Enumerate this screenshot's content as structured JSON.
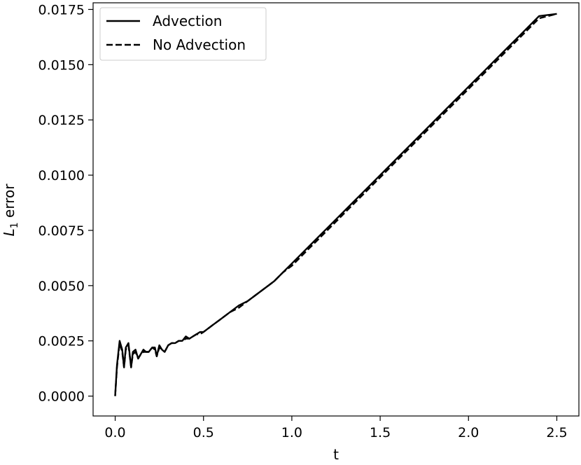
{
  "chart_data": {
    "type": "line",
    "xlabel": "t",
    "ylabel": "L",
    "ylabel_sub": "1",
    "ylabel_suffix": " error",
    "xlim": [
      -0.125,
      2.625
    ],
    "ylim": [
      -0.0009,
      0.0178
    ],
    "xticks": [
      0.0,
      0.5,
      1.0,
      1.5,
      2.0,
      2.5
    ],
    "xtick_labels": [
      "0.0",
      "0.5",
      "1.0",
      "1.5",
      "2.0",
      "2.5"
    ],
    "yticks": [
      0.0,
      0.0025,
      0.005,
      0.0075,
      0.01,
      0.0125,
      0.015,
      0.0175
    ],
    "ytick_labels": [
      "0.0000",
      "0.0025",
      "0.0050",
      "0.0075",
      "0.0100",
      "0.0125",
      "0.0150",
      "0.0175"
    ],
    "grid": false,
    "legend_position": "top-left",
    "series": [
      {
        "name": "Advection",
        "style": "solid",
        "color": "#000000",
        "points": [
          [
            0.0,
            0.0
          ],
          [
            0.01,
            0.0014
          ],
          [
            0.025,
            0.0025
          ],
          [
            0.04,
            0.0021
          ],
          [
            0.05,
            0.0013
          ],
          [
            0.06,
            0.0022
          ],
          [
            0.075,
            0.0024
          ],
          [
            0.09,
            0.0013
          ],
          [
            0.1,
            0.002
          ],
          [
            0.115,
            0.0021
          ],
          [
            0.13,
            0.0017
          ],
          [
            0.145,
            0.0019
          ],
          [
            0.16,
            0.0021
          ],
          [
            0.175,
            0.002
          ],
          [
            0.19,
            0.002
          ],
          [
            0.2,
            0.0021
          ],
          [
            0.21,
            0.0022
          ],
          [
            0.225,
            0.0022
          ],
          [
            0.235,
            0.0018
          ],
          [
            0.25,
            0.0023
          ],
          [
            0.265,
            0.0021
          ],
          [
            0.28,
            0.002
          ],
          [
            0.3,
            0.0023
          ],
          [
            0.32,
            0.0024
          ],
          [
            0.34,
            0.0024
          ],
          [
            0.36,
            0.0025
          ],
          [
            0.38,
            0.0025
          ],
          [
            0.4,
            0.0027
          ],
          [
            0.42,
            0.0026
          ],
          [
            0.44,
            0.0027
          ],
          [
            0.46,
            0.0028
          ],
          [
            0.48,
            0.0029
          ],
          [
            0.5,
            0.0029
          ],
          [
            0.55,
            0.0032
          ],
          [
            0.6,
            0.0035
          ],
          [
            0.65,
            0.0038
          ],
          [
            0.7,
            0.0041
          ],
          [
            0.75,
            0.0043
          ],
          [
            0.8,
            0.0046
          ],
          [
            0.85,
            0.0049
          ],
          [
            0.9,
            0.0052
          ],
          [
            0.95,
            0.0056
          ],
          [
            1.0,
            0.006
          ],
          [
            1.05,
            0.0064
          ],
          [
            1.1,
            0.0068
          ],
          [
            1.15,
            0.0072
          ],
          [
            1.2,
            0.0076
          ],
          [
            1.25,
            0.008
          ],
          [
            1.3,
            0.0084
          ],
          [
            1.35,
            0.0088
          ],
          [
            1.4,
            0.0092
          ],
          [
            1.45,
            0.0096
          ],
          [
            1.5,
            0.01
          ],
          [
            1.6,
            0.0108
          ],
          [
            1.7,
            0.0116
          ],
          [
            1.8,
            0.0124
          ],
          [
            1.9,
            0.0132
          ],
          [
            2.0,
            0.014
          ],
          [
            2.1,
            0.0148
          ],
          [
            2.2,
            0.0156
          ],
          [
            2.3,
            0.0164
          ],
          [
            2.4,
            0.0172
          ],
          [
            2.5,
            0.0173
          ]
        ]
      },
      {
        "name": "No Advection",
        "style": "dashed",
        "color": "#000000",
        "points": [
          [
            0.0,
            0.0
          ],
          [
            0.01,
            0.0013
          ],
          [
            0.025,
            0.0024
          ],
          [
            0.04,
            0.002
          ],
          [
            0.05,
            0.0013
          ],
          [
            0.06,
            0.0021
          ],
          [
            0.075,
            0.0023
          ],
          [
            0.09,
            0.0013
          ],
          [
            0.1,
            0.0019
          ],
          [
            0.115,
            0.002
          ],
          [
            0.13,
            0.0017
          ],
          [
            0.145,
            0.0019
          ],
          [
            0.16,
            0.002
          ],
          [
            0.175,
            0.002
          ],
          [
            0.19,
            0.002
          ],
          [
            0.2,
            0.0021
          ],
          [
            0.21,
            0.0022
          ],
          [
            0.225,
            0.0021
          ],
          [
            0.235,
            0.0018
          ],
          [
            0.25,
            0.0022
          ],
          [
            0.265,
            0.0021
          ],
          [
            0.28,
            0.002
          ],
          [
            0.3,
            0.0023
          ],
          [
            0.32,
            0.0024
          ],
          [
            0.34,
            0.0024
          ],
          [
            0.36,
            0.0025
          ],
          [
            0.38,
            0.0025
          ],
          [
            0.4,
            0.0026
          ],
          [
            0.42,
            0.0026
          ],
          [
            0.44,
            0.0027
          ],
          [
            0.46,
            0.0028
          ],
          [
            0.48,
            0.0028
          ],
          [
            0.5,
            0.0029
          ],
          [
            0.55,
            0.0032
          ],
          [
            0.6,
            0.0035
          ],
          [
            0.65,
            0.0038
          ],
          [
            0.7,
            0.004
          ],
          [
            0.75,
            0.0043
          ],
          [
            0.8,
            0.0046
          ],
          [
            0.85,
            0.0049
          ],
          [
            0.9,
            0.0052
          ],
          [
            0.95,
            0.0056
          ],
          [
            1.0,
            0.0059
          ],
          [
            1.05,
            0.0063
          ],
          [
            1.1,
            0.0067
          ],
          [
            1.15,
            0.0071
          ],
          [
            1.2,
            0.0075
          ],
          [
            1.25,
            0.0079
          ],
          [
            1.3,
            0.0083
          ],
          [
            1.35,
            0.0087
          ],
          [
            1.4,
            0.0091
          ],
          [
            1.45,
            0.0095
          ],
          [
            1.5,
            0.0099
          ],
          [
            1.6,
            0.0107
          ],
          [
            1.7,
            0.0115
          ],
          [
            1.8,
            0.0123
          ],
          [
            1.9,
            0.0131
          ],
          [
            2.0,
            0.0139
          ],
          [
            2.1,
            0.0147
          ],
          [
            2.2,
            0.0155
          ],
          [
            2.3,
            0.0163
          ],
          [
            2.4,
            0.0171
          ],
          [
            2.5,
            0.0173
          ]
        ]
      }
    ]
  }
}
